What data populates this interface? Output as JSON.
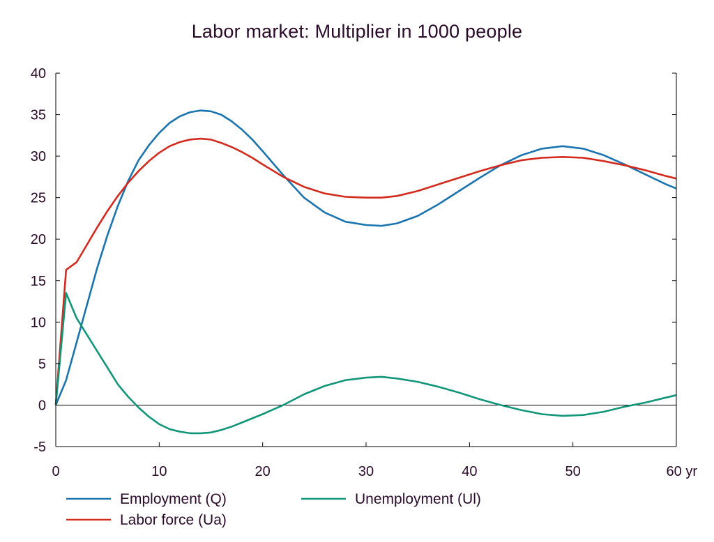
{
  "chart_data": {
    "type": "line",
    "title": "Labor market: Multiplier in 1000 people",
    "x_unit_label": "yr",
    "xlim": [
      0,
      60
    ],
    "ylim": [
      -5,
      40
    ],
    "x_ticks": [
      0,
      10,
      20,
      30,
      40,
      50,
      60
    ],
    "x_tick_labels": [
      "0",
      "10",
      "20",
      "30",
      "40",
      "50",
      "60 yr"
    ],
    "y_ticks": [
      -5,
      0,
      5,
      10,
      15,
      20,
      25,
      30,
      35,
      40
    ],
    "y_tick_labels": [
      "-5",
      "0",
      "5",
      "10",
      "15",
      "20",
      "25",
      "30",
      "35",
      "40"
    ],
    "zero_line": true,
    "grid": false,
    "legend_position": "bottom",
    "series": [
      {
        "name": "Employment (Q)",
        "color": "#1a74b0",
        "x": [
          0,
          1,
          2,
          3,
          4,
          5,
          6,
          7,
          8,
          9,
          10,
          11,
          12,
          13,
          14,
          15,
          16,
          17,
          18,
          19,
          20,
          22,
          24,
          26,
          28,
          30,
          31.5,
          33,
          35,
          37,
          39,
          41,
          43,
          45,
          47,
          49,
          51,
          53,
          55,
          57,
          59,
          60
        ],
        "y": [
          0,
          3,
          7.5,
          12,
          16.5,
          20.5,
          24,
          27,
          29.5,
          31.3,
          32.8,
          34,
          34.8,
          35.3,
          35.5,
          35.4,
          35,
          34.2,
          33.2,
          32,
          30.6,
          27.7,
          25,
          23.2,
          22.1,
          21.7,
          21.6,
          21.9,
          22.8,
          24.2,
          25.8,
          27.4,
          28.9,
          30.1,
          30.9,
          31.2,
          30.9,
          30.1,
          29,
          27.8,
          26.6,
          26.1
        ]
      },
      {
        "name": "Labor force (Ua)",
        "color": "#d42a1e",
        "x": [
          0,
          1,
          2,
          3,
          4,
          5,
          6,
          7,
          8,
          9,
          10,
          11,
          12,
          13,
          14,
          15,
          16,
          17,
          18,
          19,
          20,
          22,
          24,
          26,
          28,
          30,
          31.5,
          33,
          35,
          37,
          39,
          41,
          43,
          45,
          47,
          49,
          51,
          53,
          55,
          57,
          59,
          60
        ],
        "y": [
          0,
          16.3,
          17.2,
          19.3,
          21.4,
          23.4,
          25.2,
          26.8,
          28.2,
          29.4,
          30.4,
          31.2,
          31.7,
          32,
          32.1,
          32,
          31.6,
          31.1,
          30.5,
          29.8,
          29,
          27.5,
          26.3,
          25.5,
          25.1,
          25,
          25,
          25.2,
          25.8,
          26.6,
          27.4,
          28.2,
          28.9,
          29.5,
          29.8,
          29.9,
          29.8,
          29.4,
          28.9,
          28.3,
          27.6,
          27.3
        ]
      },
      {
        "name": "Unemployment (Ul)",
        "color": "#12967a",
        "x": [
          0,
          1,
          2,
          3,
          4,
          5,
          6,
          7,
          8,
          9,
          10,
          11,
          12,
          13,
          14,
          15,
          16,
          17,
          18,
          19,
          20,
          22,
          24,
          26,
          28,
          30,
          31.5,
          33,
          35,
          37,
          39,
          41,
          43,
          45,
          47,
          49,
          51,
          53,
          55,
          57,
          59,
          60
        ],
        "y": [
          0,
          13.5,
          10.5,
          8.5,
          6.5,
          4.5,
          2.5,
          1,
          -0.3,
          -1.4,
          -2.3,
          -2.9,
          -3.2,
          -3.4,
          -3.4,
          -3.3,
          -3,
          -2.6,
          -2.1,
          -1.6,
          -1.1,
          0,
          1.3,
          2.3,
          3,
          3.3,
          3.4,
          3.2,
          2.8,
          2.2,
          1.5,
          0.7,
          0,
          -0.6,
          -1.1,
          -1.3,
          -1.2,
          -0.8,
          -0.2,
          0.3,
          0.9,
          1.2
        ]
      }
    ]
  }
}
